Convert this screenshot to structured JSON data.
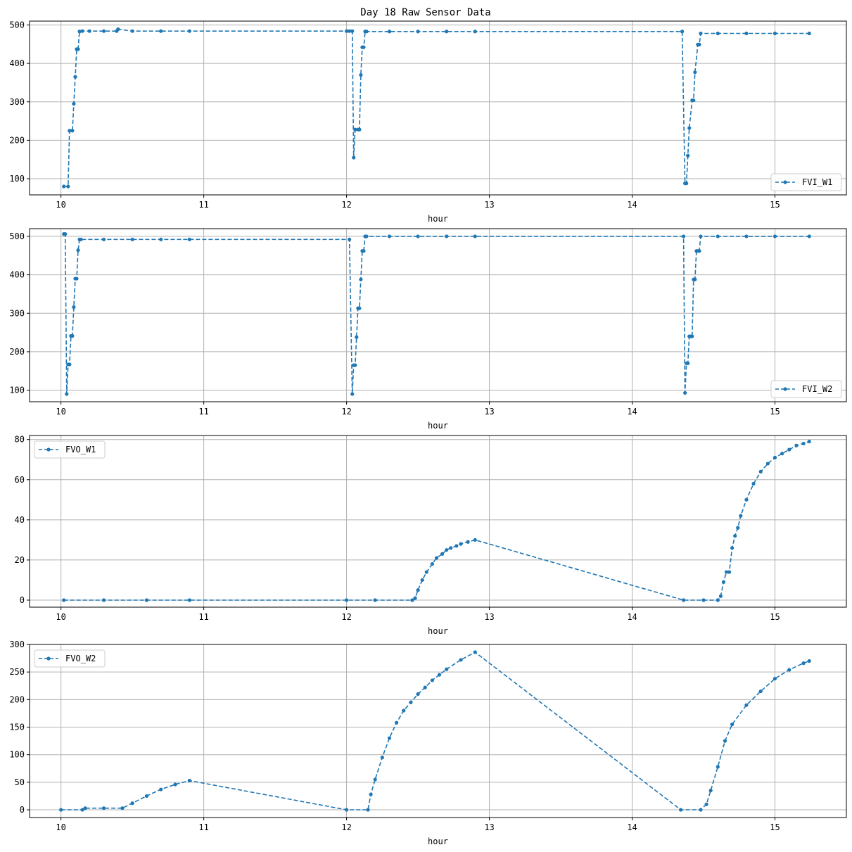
{
  "figure": {
    "title": "Day 18 Raw Sensor Data"
  },
  "colors": {
    "series": "#1f77b4",
    "grid": "#b0b0b0"
  },
  "chart_data": [
    {
      "type": "line",
      "xlabel": "hour",
      "xlim": [
        9.78,
        15.5
      ],
      "ylim": [
        58,
        510
      ],
      "xticks": [
        10,
        11,
        12,
        13,
        14,
        15
      ],
      "yticks": [
        100,
        200,
        300,
        400,
        500
      ],
      "grid": true,
      "legend": "lower-right",
      "series": [
        {
          "name": "FVI_W1",
          "x": [
            10.02,
            10.05,
            10.06,
            10.08,
            10.09,
            10.1,
            10.11,
            10.12,
            10.13,
            10.15,
            10.2,
            10.3,
            10.39,
            10.4,
            10.5,
            10.7,
            10.9,
            12.0,
            12.02,
            12.04,
            12.05,
            12.06,
            12.08,
            12.09,
            12.1,
            12.11,
            12.12,
            12.13,
            12.14,
            12.3,
            12.5,
            12.7,
            12.9,
            14.35,
            14.37,
            14.38,
            14.39,
            14.4,
            14.42,
            14.43,
            14.44,
            14.46,
            14.47,
            14.48,
            14.6,
            14.8,
            15.0,
            15.24
          ],
          "y": [
            80,
            80,
            225,
            225,
            295,
            365,
            437,
            437,
            483,
            484,
            484,
            484,
            484,
            489,
            484,
            484,
            484,
            484,
            484,
            484,
            155,
            228,
            228,
            228,
            370,
            442,
            442,
            483,
            483,
            483,
            483,
            483,
            483,
            483,
            88,
            88,
            160,
            232,
            304,
            304,
            377,
            449,
            449,
            478,
            478,
            478,
            478,
            478
          ]
        }
      ]
    },
    {
      "type": "line",
      "xlabel": "hour",
      "xlim": [
        9.78,
        15.5
      ],
      "ylim": [
        70,
        520
      ],
      "xticks": [
        10,
        11,
        12,
        13,
        14,
        15
      ],
      "yticks": [
        100,
        200,
        300,
        400,
        500
      ],
      "grid": true,
      "legend": "lower-right",
      "series": [
        {
          "name": "FVI_W2",
          "x": [
            10.02,
            10.03,
            10.04,
            10.05,
            10.06,
            10.07,
            10.08,
            10.09,
            10.1,
            10.11,
            10.12,
            10.13,
            10.14,
            10.3,
            10.5,
            10.7,
            10.9,
            12.02,
            12.04,
            12.05,
            12.06,
            12.07,
            12.08,
            12.09,
            12.1,
            12.11,
            12.12,
            12.13,
            12.14,
            12.3,
            12.5,
            12.7,
            12.9,
            14.36,
            14.37,
            14.38,
            14.39,
            14.4,
            14.41,
            14.42,
            14.43,
            14.44,
            14.45,
            14.46,
            14.47,
            14.48,
            14.6,
            14.8,
            15.0,
            15.24
          ],
          "y": [
            506,
            506,
            90,
            167,
            167,
            241,
            241,
            316,
            390,
            390,
            464,
            492,
            492,
            492,
            492,
            492,
            492,
            492,
            90,
            165,
            165,
            238,
            313,
            313,
            388,
            462,
            462,
            500,
            500,
            500,
            500,
            500,
            500,
            500,
            93,
            170,
            170,
            240,
            240,
            240,
            388,
            388,
            462,
            462,
            462,
            500,
            500,
            500,
            500,
            500
          ]
        }
      ]
    },
    {
      "type": "line",
      "xlabel": "hour",
      "xlim": [
        9.78,
        15.5
      ],
      "ylim": [
        -3.5,
        82
      ],
      "xticks": [
        10,
        11,
        12,
        13,
        14,
        15
      ],
      "yticks": [
        0,
        20,
        40,
        60,
        80
      ],
      "grid": true,
      "legend": "upper-left",
      "series": [
        {
          "name": "FVO_W1",
          "x": [
            10.02,
            10.3,
            10.6,
            10.9,
            12.0,
            12.2,
            12.46,
            12.48,
            12.5,
            12.53,
            12.56,
            12.6,
            12.63,
            12.67,
            12.7,
            12.73,
            12.77,
            12.8,
            12.85,
            12.9,
            14.36,
            14.5,
            14.6,
            14.62,
            14.64,
            14.66,
            14.68,
            14.7,
            14.72,
            14.74,
            14.76,
            14.8,
            14.85,
            14.9,
            14.95,
            15.0,
            15.05,
            15.1,
            15.15,
            15.2,
            15.24
          ],
          "y": [
            0,
            0,
            0,
            0,
            0,
            0,
            0,
            1,
            5,
            10,
            14,
            18,
            21,
            23,
            25,
            26,
            27,
            28,
            29,
            30,
            0,
            0,
            0,
            2,
            9,
            14,
            14,
            26,
            32,
            36,
            42,
            50,
            58,
            64,
            68,
            71,
            73,
            75,
            77,
            78,
            79
          ]
        }
      ]
    },
    {
      "type": "line",
      "xlabel": "hour",
      "xlim": [
        9.78,
        15.5
      ],
      "ylim": [
        -14,
        300
      ],
      "xticks": [
        10,
        11,
        12,
        13,
        14,
        15
      ],
      "yticks": [
        0,
        50,
        100,
        150,
        200,
        250,
        300
      ],
      "grid": true,
      "legend": "upper-left",
      "series": [
        {
          "name": "FVO_W2",
          "x": [
            10.0,
            10.15,
            10.17,
            10.3,
            10.43,
            10.5,
            10.6,
            10.7,
            10.8,
            10.9,
            12.0,
            12.15,
            12.17,
            12.2,
            12.25,
            12.3,
            12.35,
            12.4,
            12.45,
            12.5,
            12.55,
            12.6,
            12.65,
            12.7,
            12.8,
            12.9,
            14.34,
            14.48,
            14.52,
            14.55,
            14.6,
            14.65,
            14.7,
            14.8,
            14.9,
            15.0,
            15.1,
            15.2,
            15.24
          ],
          "y": [
            0,
            0,
            3,
            3,
            3,
            12,
            25,
            37,
            46,
            53,
            0,
            0,
            28,
            55,
            95,
            130,
            158,
            180,
            195,
            210,
            222,
            235,
            245,
            255,
            272,
            286,
            0,
            0,
            10,
            35,
            78,
            125,
            155,
            190,
            215,
            238,
            254,
            266,
            270
          ]
        }
      ]
    }
  ]
}
